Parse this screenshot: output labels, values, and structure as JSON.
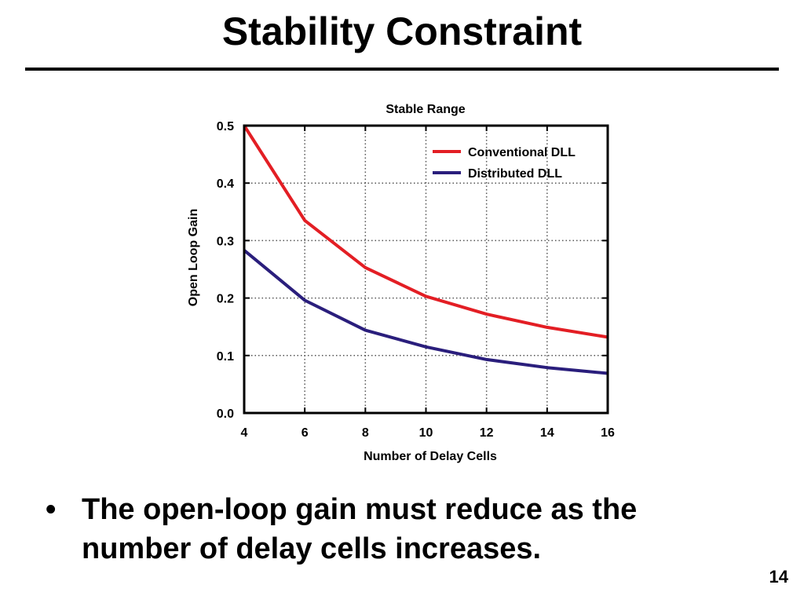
{
  "slide": {
    "title": "Stability Constraint",
    "bullet_symbol": "•",
    "bullet_text": "The open-loop gain must reduce as the number of delay cells increases.",
    "page_number": "14"
  },
  "chart_data": {
    "type": "line",
    "title": "Stable Range",
    "xlabel": "Number of Delay Cells",
    "ylabel": "Open Loop Gain",
    "xlim": [
      4,
      16
    ],
    "ylim": [
      0.0,
      0.5
    ],
    "x_ticks": [
      "4",
      "6",
      "8",
      "10",
      "12",
      "14",
      "16"
    ],
    "y_ticks": [
      "0.0",
      "0.1",
      "0.2",
      "0.3",
      "0.4",
      "0.5"
    ],
    "grid": true,
    "legend_position": "top-right",
    "x": [
      4,
      6,
      8,
      10,
      12,
      14,
      16
    ],
    "series": [
      {
        "name": "Conventional DLL",
        "color": "#e31e24",
        "values": [
          0.5,
          0.335,
          0.253,
          0.203,
          0.172,
          0.149,
          0.132
        ]
      },
      {
        "name": "Distributed DLL",
        "color": "#2a1e7c",
        "values": [
          0.283,
          0.196,
          0.144,
          0.115,
          0.093,
          0.079,
          0.069
        ]
      }
    ]
  }
}
